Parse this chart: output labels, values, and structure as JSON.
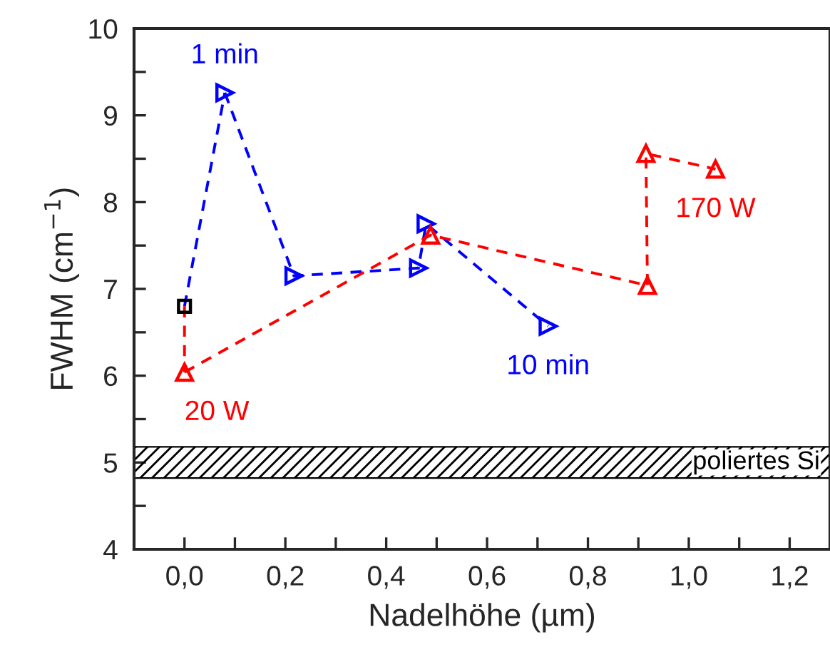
{
  "chart_data": {
    "type": "line",
    "xlabel": "Nadelhöhe (µm)",
    "ylabel": "FWHM (cm$^{−1}$)",
    "series": [
      {
        "type": "scatter",
        "color": "#000000",
        "marker": "square",
        "x": [
          0.0
        ],
        "values": [
          6.8
        ]
      },
      {
        "color": "#0000ff",
        "line_style": "dashed",
        "x": [
          0.0,
          0.08
        ],
        "values": [
          6.8,
          9.26
        ]
      },
      {
        "color": "#ff0000",
        "line_style": "dashed",
        "x": [
          0.0,
          0.0
        ],
        "values": [
          6.8,
          6.04
        ]
      },
      {
        "color": "#0000ff",
        "marker": "triangle-right",
        "line_style": "dashed",
        "x": [
          0.08,
          0.217,
          0.464,
          0.479,
          0.721
        ],
        "values": [
          9.26,
          7.15,
          7.24,
          7.75,
          6.57
        ]
      },
      {
        "color": "#ff0000",
        "marker": "triangle",
        "line_style": "dashed",
        "x": [
          0.0,
          0.488,
          0.918,
          0.915,
          1.053
        ],
        "values": [
          6.04,
          7.62,
          7.04,
          8.56,
          8.38
        ]
      }
    ],
    "annotations": [
      {
        "text": "1 min",
        "x": 0.08,
        "y": 9.26
      },
      {
        "text": "10 min",
        "x": 0.721,
        "y": 6.57
      },
      {
        "text": "20 W",
        "x": 0.0,
        "y": 6.04
      },
      {
        "text": "170 W",
        "x": 1.053,
        "y": 8.38
      }
    ],
    "bands": [
      {
        "axis": "y",
        "from": 4.82,
        "to": 5.18,
        "label": "poliertes Si",
        "color": "#000000"
      }
    ],
    "xlim": [
      -0.1,
      1.28
    ],
    "ylim": [
      4,
      10
    ],
    "xticks": [
      {
        "value": 0.0,
        "label": "0,0"
      },
      {
        "value": 0.1,
        "label": null
      },
      {
        "value": 0.2,
        "label": "0,2"
      },
      {
        "value": 0.3,
        "label": null
      },
      {
        "value": 0.4,
        "label": "0,4"
      },
      {
        "value": 0.5,
        "label": null
      },
      {
        "value": 0.6,
        "label": "0,6"
      },
      {
        "value": 0.7,
        "label": null
      },
      {
        "value": 0.8,
        "label": "0,8"
      },
      {
        "value": 0.9,
        "label": null
      },
      {
        "value": 1.0,
        "label": "1,0"
      },
      {
        "value": 1.1,
        "label": null
      },
      {
        "value": 1.2,
        "label": "1,2"
      }
    ],
    "yticks": [
      4,
      {
        "value": 4.5,
        "label": null
      },
      5,
      {
        "value": 5.5,
        "label": null
      },
      6,
      {
        "value": 6.5,
        "label": null
      },
      7,
      {
        "value": 7.5,
        "label": null
      },
      8,
      {
        "value": 8.5,
        "label": null
      },
      9,
      {
        "value": 9.5,
        "label": null
      },
      10
    ],
    "grid": false,
    "legend": false
  }
}
